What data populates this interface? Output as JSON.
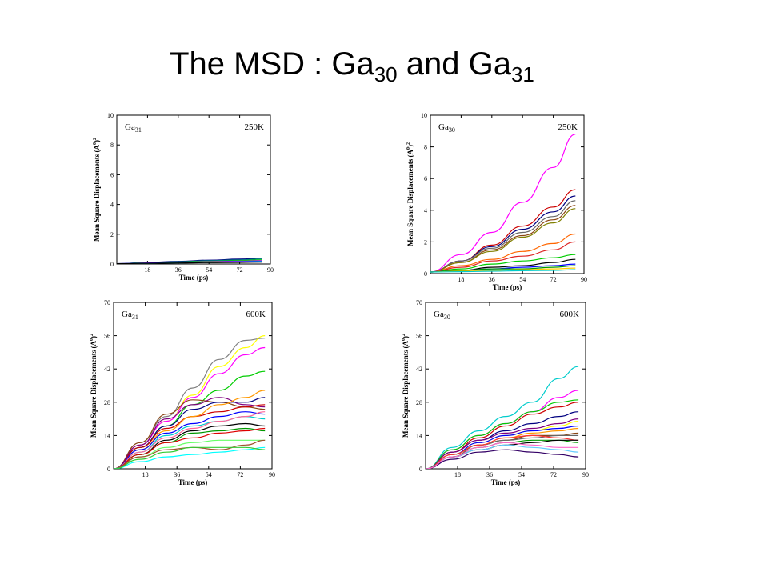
{
  "title": {
    "part1": "The MSD : Ga",
    "sub1": "30",
    "part2": " and Ga",
    "sub2": "31"
  },
  "chart_data": [
    {
      "type": "line",
      "label_base": "Ga",
      "label_sub": "31",
      "temperature": "250K",
      "xlabel": "Time (ps)",
      "ylabel": "Mean Square Displacements (A",
      "ylabel_sup1": "0",
      "ylabel_end": ")",
      "ylabel_sup2": "2",
      "xlim": [
        0,
        90
      ],
      "ylim": [
        0,
        10
      ],
      "xticks": [
        18,
        36,
        54,
        72,
        90
      ],
      "yticks": [
        0,
        2,
        4,
        6,
        8,
        10
      ],
      "x": [
        0,
        18,
        36,
        54,
        72,
        85
      ],
      "series": [
        {
          "color": "#000080",
          "values": [
            0.02,
            0.1,
            0.18,
            0.26,
            0.33,
            0.4
          ]
        },
        {
          "color": "#008080",
          "values": [
            0.02,
            0.09,
            0.15,
            0.22,
            0.28,
            0.34
          ]
        },
        {
          "color": "#00cc00",
          "values": [
            0.02,
            0.08,
            0.13,
            0.18,
            0.23,
            0.28
          ]
        },
        {
          "color": "#ff00ff",
          "values": [
            0.02,
            0.07,
            0.11,
            0.15,
            0.19,
            0.22
          ]
        },
        {
          "color": "#0000ff",
          "values": [
            0.02,
            0.06,
            0.1,
            0.13,
            0.16,
            0.19
          ]
        },
        {
          "color": "#00cccc",
          "values": [
            0.02,
            0.05,
            0.08,
            0.11,
            0.14,
            0.16
          ]
        },
        {
          "color": "#000000",
          "values": [
            0.02,
            0.05,
            0.07,
            0.09,
            0.11,
            0.13
          ]
        }
      ]
    },
    {
      "type": "line",
      "label_base": "Ga",
      "label_sub": "30",
      "temperature": "250K",
      "xlabel": "Time (ps)",
      "ylabel": "Mean Square Displacements (A",
      "ylabel_sup1": "0",
      "ylabel_end": ")",
      "ylabel_sup2": "2",
      "xlim": [
        0,
        90
      ],
      "ylim": [
        0,
        10
      ],
      "xticks": [
        18,
        36,
        54,
        72,
        90
      ],
      "yticks": [
        0,
        2,
        4,
        6,
        8,
        10
      ],
      "x": [
        0,
        18,
        36,
        54,
        72,
        85
      ],
      "series": [
        {
          "color": "#ff00ff",
          "values": [
            0.1,
            1.2,
            2.6,
            4.5,
            6.7,
            8.8
          ]
        },
        {
          "color": "#cc0000",
          "values": [
            0.1,
            0.8,
            1.8,
            3.0,
            4.2,
            5.3
          ]
        },
        {
          "color": "#000080",
          "values": [
            0.1,
            0.8,
            1.7,
            2.8,
            3.9,
            4.9
          ]
        },
        {
          "color": "#666666",
          "values": [
            0.1,
            0.8,
            1.6,
            2.6,
            3.6,
            4.6
          ]
        },
        {
          "color": "#8b4513",
          "values": [
            0.1,
            0.7,
            1.5,
            2.4,
            3.4,
            4.3
          ]
        },
        {
          "color": "#808000",
          "values": [
            0.1,
            0.7,
            1.4,
            2.3,
            3.2,
            4.1
          ]
        },
        {
          "color": "#ff6600",
          "values": [
            0.1,
            0.5,
            0.9,
            1.4,
            1.9,
            2.5
          ]
        },
        {
          "color": "#dd2222",
          "values": [
            0.1,
            0.4,
            0.8,
            1.1,
            1.5,
            2.0
          ]
        },
        {
          "color": "#00cc00",
          "values": [
            0.1,
            0.3,
            0.6,
            0.8,
            1.0,
            1.2
          ]
        },
        {
          "color": "#000000",
          "values": [
            0.1,
            0.2,
            0.4,
            0.5,
            0.7,
            0.9
          ]
        },
        {
          "color": "#0000ff",
          "values": [
            0.1,
            0.2,
            0.3,
            0.4,
            0.5,
            0.6
          ]
        },
        {
          "color": "#009900",
          "values": [
            0.1,
            0.2,
            0.3,
            0.3,
            0.4,
            0.5
          ]
        },
        {
          "color": "#ffcc00",
          "values": [
            0.1,
            0.15,
            0.2,
            0.25,
            0.3,
            0.35
          ]
        },
        {
          "color": "#00cccc",
          "values": [
            0.1,
            0.12,
            0.15,
            0.18,
            0.2,
            0.25
          ]
        }
      ]
    },
    {
      "type": "line",
      "label_base": "Ga",
      "label_sub": "31",
      "temperature": "600K",
      "xlabel": "Time (ps)",
      "ylabel": "Mean Square Displacements (A",
      "ylabel_sup1": "0",
      "ylabel_end": ")",
      "ylabel_sup2": "2",
      "xlim": [
        0,
        90
      ],
      "ylim": [
        0,
        70
      ],
      "xticks": [
        18,
        36,
        54,
        72,
        90
      ],
      "yticks": [
        0,
        14,
        28,
        42,
        56,
        70
      ],
      "x": [
        0,
        15,
        30,
        45,
        60,
        75,
        86
      ],
      "series": [
        {
          "color": "#808080",
          "values": [
            0,
            11,
            22,
            34,
            46,
            54,
            55
          ]
        },
        {
          "color": "#ffff00",
          "values": [
            0,
            10,
            20,
            31,
            43,
            51,
            56
          ]
        },
        {
          "color": "#ff00ff",
          "values": [
            0,
            10,
            20,
            30,
            40,
            48,
            51
          ]
        },
        {
          "color": "#00cc00",
          "values": [
            0,
            9,
            18,
            27,
            33,
            39,
            41
          ]
        },
        {
          "color": "#8b4513",
          "values": [
            0,
            11,
            23,
            29,
            28,
            26,
            25
          ]
        },
        {
          "color": "#800080",
          "values": [
            0,
            10,
            21,
            27,
            30,
            27,
            26
          ]
        },
        {
          "color": "#000080",
          "values": [
            0,
            9,
            18,
            25,
            28,
            28,
            30
          ]
        },
        {
          "color": "#cc0000",
          "values": [
            0,
            9,
            17,
            22,
            24,
            26,
            27
          ]
        },
        {
          "color": "#ff9900",
          "values": [
            0,
            8,
            16,
            22,
            27,
            30,
            33
          ]
        },
        {
          "color": "#0000ff",
          "values": [
            0,
            8,
            15,
            19,
            22,
            24,
            23
          ]
        },
        {
          "color": "#00cccc",
          "values": [
            0,
            7,
            14,
            18,
            20,
            22,
            21
          ]
        },
        {
          "color": "#ff6699",
          "values": [
            0,
            7,
            13,
            17,
            20,
            22,
            24
          ]
        },
        {
          "color": "#000000",
          "values": [
            0,
            6,
            12,
            16,
            18,
            19,
            18
          ]
        },
        {
          "color": "#009900",
          "values": [
            0,
            6,
            11,
            15,
            16,
            17,
            16
          ]
        },
        {
          "color": "#dd0000",
          "values": [
            0,
            6,
            11,
            13,
            15,
            16,
            17
          ]
        },
        {
          "color": "#66ff66",
          "values": [
            0,
            5,
            9,
            11,
            12,
            12,
            12
          ]
        },
        {
          "color": "#a0522d",
          "values": [
            0,
            5,
            8,
            9,
            8,
            10,
            12
          ]
        },
        {
          "color": "#00ffff",
          "values": [
            0,
            3,
            5,
            6,
            7,
            8,
            9
          ]
        },
        {
          "color": "#33cc33",
          "values": [
            0,
            4,
            7,
            9,
            9,
            9,
            8
          ]
        }
      ]
    },
    {
      "type": "line",
      "label_base": "Ga",
      "label_sub": "30",
      "temperature": "600K",
      "xlabel": "Time (ps)",
      "ylabel": "Mean Square Displacements (A",
      "ylabel_sup1": "0",
      "ylabel_end": ")",
      "ylabel_sup2": "2",
      "xlim": [
        0,
        90
      ],
      "ylim": [
        0,
        70
      ],
      "xticks": [
        18,
        36,
        54,
        72,
        90
      ],
      "yticks": [
        0,
        14,
        28,
        42,
        56,
        70
      ],
      "x": [
        0,
        15,
        30,
        45,
        60,
        75,
        86
      ],
      "series": [
        {
          "color": "#00cccc",
          "values": [
            0,
            9,
            16,
            22,
            28,
            38,
            43
          ]
        },
        {
          "color": "#ff00ff",
          "values": [
            0,
            8,
            14,
            19,
            24,
            30,
            33
          ]
        },
        {
          "color": "#00cc00",
          "values": [
            0,
            8,
            14,
            19,
            24,
            28,
            29
          ]
        },
        {
          "color": "#cc0000",
          "values": [
            0,
            7,
            13,
            18,
            23,
            26,
            28
          ]
        },
        {
          "color": "#000080",
          "values": [
            0,
            7,
            12,
            16,
            19,
            22,
            24
          ]
        },
        {
          "color": "#800080",
          "values": [
            0,
            7,
            12,
            15,
            17,
            19,
            21
          ]
        },
        {
          "color": "#ffff00",
          "values": [
            0,
            6,
            11,
            14,
            16,
            18,
            20
          ]
        },
        {
          "color": "#0000ff",
          "values": [
            0,
            6,
            11,
            14,
            16,
            17,
            18
          ]
        },
        {
          "color": "#ff9900",
          "values": [
            0,
            6,
            10,
            13,
            15,
            16,
            17
          ]
        },
        {
          "color": "#8b4513",
          "values": [
            0,
            6,
            10,
            12,
            14,
            14,
            15
          ]
        },
        {
          "color": "#666666",
          "values": [
            0,
            5,
            10,
            12,
            13,
            14,
            14
          ]
        },
        {
          "color": "#ff3333",
          "values": [
            0,
            6,
            10,
            13,
            14,
            13,
            12
          ]
        },
        {
          "color": "#009900",
          "values": [
            0,
            5,
            9,
            11,
            12,
            12,
            11
          ]
        },
        {
          "color": "#000000",
          "values": [
            0,
            5,
            8,
            10,
            11,
            12,
            12
          ]
        },
        {
          "color": "#66ccff",
          "values": [
            0,
            5,
            8,
            10,
            9,
            8,
            7
          ]
        },
        {
          "color": "#330066",
          "values": [
            0,
            4,
            7,
            8,
            7,
            6,
            5
          ]
        },
        {
          "color": "#ff66cc",
          "values": [
            0,
            5,
            9,
            11,
            10,
            9,
            9
          ]
        }
      ]
    }
  ]
}
